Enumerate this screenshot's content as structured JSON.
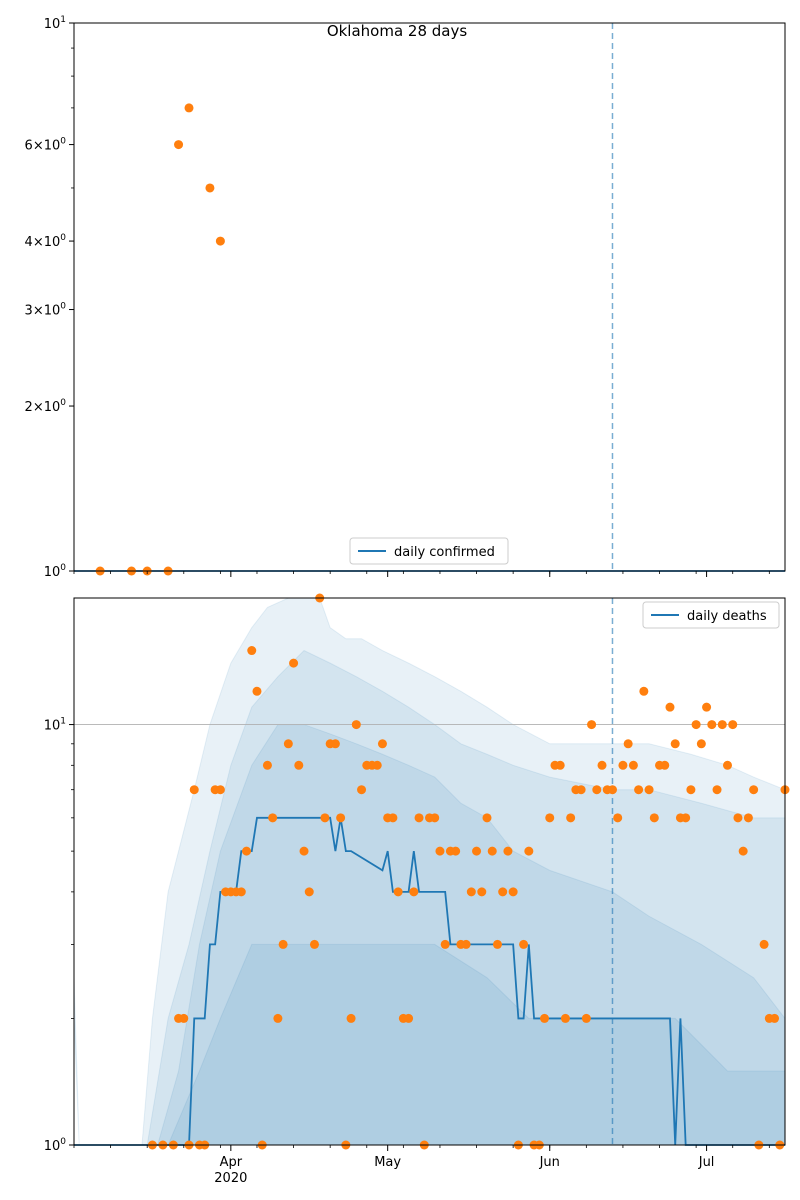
{
  "chart_data": [
    {
      "type": "scatter",
      "title": "Oklahoma 28 days",
      "yscale": "log",
      "ylim": [
        1,
        10
      ],
      "xlim": [
        "2020-03-02",
        "2020-07-16"
      ],
      "y_tick_labels": [
        "10^0",
        "2×10^0",
        "3×10^0",
        "4×10^0",
        "6×10^0",
        "10^1"
      ],
      "legend": {
        "label": "daily confirmed",
        "location": "lower center"
      },
      "vline_date": "2020-06-13",
      "series": [
        {
          "name": "daily confirmed",
          "kind": "line",
          "color": "#1f77b4",
          "x": [
            "2020-03-02",
            "2020-07-16"
          ],
          "y": [
            1,
            1
          ]
        },
        {
          "kind": "scatter",
          "color": "#ff7f0e",
          "x": [
            "2020-03-07",
            "2020-03-13",
            "2020-03-16",
            "2020-03-20",
            "2020-03-22",
            "2020-03-24",
            "2020-03-28",
            "2020-03-30"
          ],
          "y": [
            1,
            1,
            1,
            1,
            6,
            7,
            5,
            4
          ]
        }
      ]
    },
    {
      "type": "scatter",
      "yscale": "log",
      "ylim": [
        1,
        20
      ],
      "xlim": [
        "2020-03-02",
        "2020-07-16"
      ],
      "y_tick_labels": [
        "10^0",
        "10^1"
      ],
      "grid_y": [
        10
      ],
      "x_tick_labels": [
        {
          "date": "2020-04-01",
          "label": "Apr",
          "sub": "2020"
        },
        {
          "date": "2020-05-01",
          "label": "May"
        },
        {
          "date": "2020-06-01",
          "label": "Jun"
        },
        {
          "date": "2020-07-01",
          "label": "Jul"
        }
      ],
      "legend": {
        "label": "daily deaths",
        "location": "upper right"
      },
      "vline_date": "2020-06-13",
      "bands": [
        {
          "color": "#1f77b4",
          "opacity": 0.1,
          "x": [
            "2020-03-02",
            "2020-03-03",
            "2020-03-15",
            "2020-03-17",
            "2020-03-20",
            "2020-03-22",
            "2020-03-25",
            "2020-03-28",
            "2020-04-01",
            "2020-04-05",
            "2020-04-08",
            "2020-04-12",
            "2020-04-15",
            "2020-04-18",
            "2020-04-20",
            "2020-04-23",
            "2020-04-26",
            "2020-04-30",
            "2020-05-05",
            "2020-05-10",
            "2020-05-15",
            "2020-05-20",
            "2020-05-25",
            "2020-06-01",
            "2020-06-10",
            "2020-06-13",
            "2020-06-20",
            "2020-06-28",
            "2020-07-05",
            "2020-07-10",
            "2020-07-16"
          ],
          "lower": [
            2,
            1,
            1,
            1,
            1,
            1,
            1,
            1,
            1,
            1,
            1,
            1,
            1,
            1,
            1,
            1,
            1,
            1,
            1,
            1,
            1,
            1,
            1,
            1,
            1,
            1,
            1,
            1,
            1,
            1,
            1
          ],
          "upper": [
            2.5,
            1,
            1,
            2,
            4,
            5,
            7,
            10,
            14,
            17,
            19,
            21,
            21,
            21,
            17,
            16,
            16,
            15,
            14,
            13,
            12,
            11,
            10,
            9,
            9,
            9,
            9,
            8.5,
            8,
            7.5,
            7
          ]
        },
        {
          "color": "#1f77b4",
          "opacity": 0.1,
          "x": [
            "2020-03-02",
            "2020-03-16",
            "2020-03-20",
            "2020-03-24",
            "2020-03-28",
            "2020-04-01",
            "2020-04-05",
            "2020-04-10",
            "2020-04-15",
            "2020-04-20",
            "2020-04-25",
            "2020-04-30",
            "2020-05-05",
            "2020-05-10",
            "2020-05-15",
            "2020-05-20",
            "2020-05-25",
            "2020-06-01",
            "2020-06-13",
            "2020-06-20",
            "2020-06-30",
            "2020-07-10",
            "2020-07-16"
          ],
          "lower": [
            1,
            1,
            1,
            1,
            1,
            1,
            1,
            1,
            1,
            1,
            1,
            1,
            1,
            1,
            1,
            1,
            1,
            1,
            1,
            1,
            1,
            1,
            1
          ],
          "upper": [
            1,
            1,
            2,
            3,
            5,
            8,
            11,
            13,
            15,
            14,
            13,
            12,
            11,
            10,
            9,
            8.5,
            8,
            7.5,
            7,
            7,
            6.5,
            6,
            6
          ]
        },
        {
          "color": "#1f77b4",
          "opacity": 0.1,
          "x": [
            "2020-03-02",
            "2020-03-18",
            "2020-03-22",
            "2020-03-26",
            "2020-03-30",
            "2020-04-05",
            "2020-04-10",
            "2020-04-15",
            "2020-04-20",
            "2020-04-25",
            "2020-04-30",
            "2020-05-05",
            "2020-05-10",
            "2020-05-15",
            "2020-05-20",
            "2020-05-25",
            "2020-06-01",
            "2020-06-13",
            "2020-06-20",
            "2020-06-30",
            "2020-07-10",
            "2020-07-16"
          ],
          "lower": [
            1,
            1,
            1,
            1,
            1,
            1,
            1,
            1,
            1,
            1,
            1,
            1,
            1,
            1,
            1,
            1,
            1,
            1,
            1,
            1,
            1,
            1
          ],
          "upper": [
            1,
            1,
            1.5,
            3,
            5,
            8,
            10,
            10,
            9.5,
            9,
            8.5,
            8,
            7.5,
            6.5,
            6,
            5,
            4.5,
            4,
            3.5,
            3,
            2.5,
            2
          ]
        },
        {
          "color": "#1f77b4",
          "opacity": 0.1,
          "x": [
            "2020-03-02",
            "2020-03-20",
            "2020-03-26",
            "2020-03-30",
            "2020-04-05",
            "2020-04-15",
            "2020-04-25",
            "2020-05-10",
            "2020-05-20",
            "2020-05-28",
            "2020-06-05",
            "2020-06-13",
            "2020-06-25",
            "2020-07-05",
            "2020-07-16"
          ],
          "lower": [
            1,
            1,
            1,
            1,
            1,
            1,
            1,
            1,
            1,
            1,
            1,
            1,
            1,
            1,
            1
          ],
          "upper": [
            1,
            1,
            1.5,
            2,
            3,
            3,
            3,
            3,
            2.5,
            2,
            2,
            2,
            2,
            1.5,
            1.5
          ]
        }
      ],
      "series": [
        {
          "name": "daily deaths",
          "kind": "line",
          "color": "#1f77b4",
          "x": [
            "2020-03-02",
            "2020-03-24",
            "2020-03-25",
            "2020-03-27",
            "2020-03-28",
            "2020-03-29",
            "2020-03-30",
            "2020-04-02",
            "2020-04-03",
            "2020-04-05",
            "2020-04-06",
            "2020-04-08",
            "2020-04-09",
            "2020-04-20",
            "2020-04-21",
            "2020-04-22",
            "2020-04-23",
            "2020-04-24",
            "2020-04-30",
            "2020-05-01",
            "2020-05-02",
            "2020-05-05",
            "2020-05-06",
            "2020-05-07",
            "2020-05-08",
            "2020-05-12",
            "2020-05-13",
            "2020-05-19",
            "2020-05-20",
            "2020-05-25",
            "2020-05-26",
            "2020-05-27",
            "2020-05-28",
            "2020-05-29",
            "2020-05-30",
            "2020-05-31",
            "2020-06-01",
            "2020-06-24",
            "2020-06-25",
            "2020-06-26",
            "2020-06-27",
            "2020-07-16"
          ],
          "y": [
            1,
            1,
            2,
            2,
            3,
            3,
            4,
            4,
            5,
            5,
            6,
            6,
            6,
            6,
            5,
            6,
            5,
            5,
            4.5,
            5,
            4,
            4,
            5,
            4,
            4,
            4,
            3,
            3,
            3,
            3,
            2,
            2,
            3,
            2,
            2,
            2,
            2,
            2,
            1,
            2,
            1,
            1
          ]
        },
        {
          "kind": "scatter",
          "color": "#ff7f0e",
          "x": [
            "2020-03-17",
            "2020-03-19",
            "2020-03-21",
            "2020-03-22",
            "2020-03-23",
            "2020-03-24",
            "2020-03-25",
            "2020-03-26",
            "2020-03-27",
            "2020-03-29",
            "2020-03-30",
            "2020-03-31",
            "2020-04-01",
            "2020-04-02",
            "2020-04-03",
            "2020-04-04",
            "2020-04-05",
            "2020-04-06",
            "2020-04-07",
            "2020-04-08",
            "2020-04-09",
            "2020-04-10",
            "2020-04-11",
            "2020-04-12",
            "2020-04-13",
            "2020-04-14",
            "2020-04-15",
            "2020-04-16",
            "2020-04-17",
            "2020-04-18",
            "2020-04-19",
            "2020-04-20",
            "2020-04-21",
            "2020-04-22",
            "2020-04-23",
            "2020-04-24",
            "2020-04-25",
            "2020-04-26",
            "2020-04-27",
            "2020-04-28",
            "2020-04-29",
            "2020-04-30",
            "2020-05-01",
            "2020-05-02",
            "2020-05-03",
            "2020-05-04",
            "2020-05-05",
            "2020-05-06",
            "2020-05-07",
            "2020-05-08",
            "2020-05-09",
            "2020-05-10",
            "2020-05-11",
            "2020-05-12",
            "2020-05-13",
            "2020-05-14",
            "2020-05-15",
            "2020-05-16",
            "2020-05-17",
            "2020-05-18",
            "2020-05-19",
            "2020-05-20",
            "2020-05-21",
            "2020-05-22",
            "2020-05-23",
            "2020-05-24",
            "2020-05-25",
            "2020-05-26",
            "2020-05-27",
            "2020-05-28",
            "2020-05-29",
            "2020-05-30",
            "2020-05-31",
            "2020-06-01",
            "2020-06-02",
            "2020-06-03",
            "2020-06-04",
            "2020-06-05",
            "2020-06-06",
            "2020-06-07",
            "2020-06-08",
            "2020-06-09",
            "2020-06-10",
            "2020-06-11",
            "2020-06-12",
            "2020-06-13",
            "2020-06-14",
            "2020-06-15",
            "2020-06-16",
            "2020-06-17",
            "2020-06-18",
            "2020-06-19",
            "2020-06-20",
            "2020-06-21",
            "2020-06-22",
            "2020-06-23",
            "2020-06-24",
            "2020-06-25",
            "2020-06-26",
            "2020-06-27",
            "2020-06-28",
            "2020-06-29",
            "2020-06-30",
            "2020-07-01",
            "2020-07-02",
            "2020-07-03",
            "2020-07-04",
            "2020-07-05",
            "2020-07-06",
            "2020-07-07",
            "2020-07-08",
            "2020-07-09",
            "2020-07-10",
            "2020-07-11",
            "2020-07-12",
            "2020-07-13",
            "2020-07-14",
            "2020-07-15",
            "2020-07-16"
          ],
          "y": [
            1,
            1,
            1,
            2,
            2,
            1,
            7,
            1,
            1,
            7,
            7,
            4,
            4,
            4,
            4,
            5,
            15,
            12,
            1,
            8,
            6,
            2,
            3,
            9,
            14,
            8,
            5,
            4,
            3,
            20,
            6,
            9,
            9,
            6,
            1,
            2,
            10,
            7,
            8,
            8,
            8,
            9,
            6,
            6,
            4,
            2,
            2,
            4,
            6,
            1,
            6,
            6,
            5,
            3,
            5,
            5,
            3,
            3,
            4,
            5,
            4,
            6,
            5,
            3,
            4,
            5,
            4,
            1,
            3,
            5,
            1,
            1,
            2,
            6,
            8,
            8,
            2,
            6,
            7,
            7,
            2,
            10,
            7,
            8,
            7,
            7,
            6,
            8,
            9,
            8,
            7,
            12,
            7,
            6,
            8,
            8,
            11,
            9,
            6,
            6,
            7,
            10,
            9,
            11,
            10,
            7,
            10,
            8,
            10,
            6,
            5,
            6,
            7,
            1,
            3,
            2,
            2,
            1,
            7
          ]
        }
      ]
    }
  ]
}
